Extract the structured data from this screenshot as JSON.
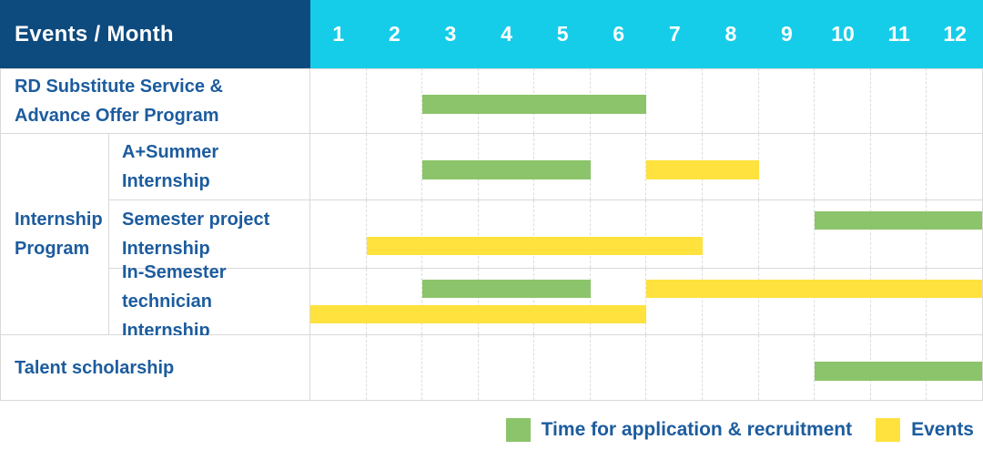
{
  "header": {
    "title": "Events / Month",
    "months": [
      "1",
      "2",
      "3",
      "4",
      "5",
      "6",
      "7",
      "8",
      "9",
      "10",
      "11",
      "12"
    ]
  },
  "colors": {
    "header_bg": "#0D4A7E",
    "months_bg": "#16CDE9",
    "header_text": "#FFFFFF",
    "label_text": "#1C5C9E",
    "green": "#8BC46A",
    "yellow": "#FFE23D",
    "grid_line": "#D9D9D9"
  },
  "chart_data": {
    "type": "bar",
    "variant": "gantt",
    "title": "Events / Month",
    "xlabel": "Month",
    "x_ticks": [
      1,
      2,
      3,
      4,
      5,
      6,
      7,
      8,
      9,
      10,
      11,
      12
    ],
    "x_range": [
      1,
      12
    ],
    "grid": true,
    "legend_position": "bottom-right",
    "series_legend": [
      {
        "name": "Time for application & recruitment",
        "color_key": "green",
        "color": "#8BC46A"
      },
      {
        "name": "Events",
        "color_key": "yellow",
        "color": "#FFE23D"
      }
    ],
    "rows": [
      {
        "group": "",
        "label": "RD Substitute Service & Advance Offer Program",
        "label_lines": [
          "RD Substitute Service &",
          "Advance Offer Program"
        ],
        "bars": [
          {
            "series": "Time for application & recruitment",
            "color_key": "green",
            "start_month": 3,
            "end_month": 6,
            "lane": "center"
          }
        ]
      },
      {
        "group": "Internship Program",
        "group_label_lines": [
          "Internship",
          "Program"
        ],
        "group_span": 3,
        "label": "A+Summer Internship",
        "label_lines": [
          "A+Summer",
          "Internship"
        ],
        "bars": [
          {
            "series": "Time for application & recruitment",
            "color_key": "green",
            "start_month": 3,
            "end_month": 5,
            "lane": "center"
          },
          {
            "series": "Events",
            "color_key": "yellow",
            "start_month": 7,
            "end_month": 8,
            "lane": "center"
          }
        ]
      },
      {
        "group": "Internship Program",
        "label": "Semester project Internship",
        "label_lines": [
          "Semester project",
          "Internship"
        ],
        "bars": [
          {
            "series": "Time for application & recruitment",
            "color_key": "green",
            "start_month": 10,
            "end_month": 12,
            "lane": "top"
          },
          {
            "series": "Events",
            "color_key": "yellow",
            "start_month": 2,
            "end_month": 7,
            "lane": "bottom"
          }
        ]
      },
      {
        "group": "Internship Program",
        "label": "In-Semester technician Internship",
        "label_lines": [
          "In-Semester",
          "technician Internship"
        ],
        "bars": [
          {
            "series": "Time for application & recruitment",
            "color_key": "green",
            "start_month": 3,
            "end_month": 5,
            "lane": "top"
          },
          {
            "series": "Events",
            "color_key": "yellow",
            "start_month": 7,
            "end_month": 12,
            "lane": "top"
          },
          {
            "series": "Events",
            "color_key": "yellow",
            "start_month": 1,
            "end_month": 6,
            "lane": "bottom"
          }
        ]
      },
      {
        "group": "",
        "label": "Talent scholarship",
        "label_lines": [
          "Talent scholarship"
        ],
        "bars": [
          {
            "series": "Time for application & recruitment",
            "color_key": "green",
            "start_month": 10,
            "end_month": 12,
            "lane": "center"
          }
        ]
      }
    ]
  },
  "legend": {
    "items": [
      {
        "label": "Time for application & recruitment",
        "color_key": "green"
      },
      {
        "label": "Events",
        "color_key": "yellow"
      }
    ]
  }
}
